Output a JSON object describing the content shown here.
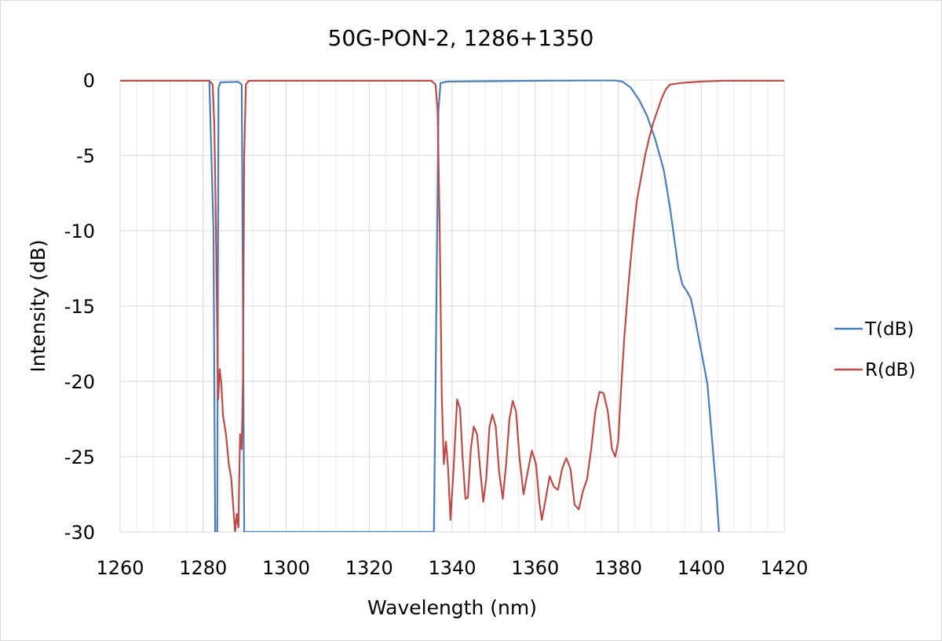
{
  "chart_data": {
    "type": "line",
    "title": "50G-PON-2, 1286+1350",
    "xlabel": "Wavelength (nm)",
    "ylabel": "Intensity (dB)",
    "xlim": [
      1260,
      1420
    ],
    "ylim": [
      -30,
      0
    ],
    "xticks": [
      1260,
      1280,
      1300,
      1320,
      1340,
      1360,
      1380,
      1400,
      1420
    ],
    "yticks": [
      0,
      -5,
      -10,
      -15,
      -20,
      -25,
      -30
    ],
    "xtick_labels": [
      "1260",
      "1280",
      "1300",
      "1320",
      "1340",
      "1360",
      "1380",
      "1400",
      "1420"
    ],
    "ytick_labels": [
      "0",
      "-5",
      "-10",
      "-15",
      "-20",
      "-25",
      "-30"
    ],
    "minor_x_step": 4,
    "grid": true,
    "legend_position": "right",
    "series": [
      {
        "name": "T(dB)",
        "color": "#4a7ebb",
        "points": [
          [
            1260,
            -0.05
          ],
          [
            1281.5,
            -0.05
          ],
          [
            1282.5,
            -10
          ],
          [
            1282.9,
            -30
          ],
          [
            1283.4,
            -30
          ],
          [
            1283.7,
            -0.5
          ],
          [
            1284.2,
            -0.15
          ],
          [
            1288.5,
            -0.12
          ],
          [
            1289.3,
            -0.3
          ],
          [
            1289.9,
            -30
          ],
          [
            1290.2,
            -30
          ],
          [
            1290.5,
            -30
          ],
          [
            1335.6,
            -30
          ],
          [
            1336.2,
            -15
          ],
          [
            1336.7,
            -2
          ],
          [
            1337.2,
            -0.2
          ],
          [
            1339,
            -0.1
          ],
          [
            1360,
            -0.05
          ],
          [
            1375,
            -0.03
          ],
          [
            1379,
            -0.03
          ],
          [
            1381,
            -0.1
          ],
          [
            1383,
            -0.5
          ],
          [
            1385,
            -1.3
          ],
          [
            1387,
            -2.4
          ],
          [
            1389,
            -4
          ],
          [
            1391,
            -6
          ],
          [
            1392.5,
            -8.5
          ],
          [
            1393.5,
            -10.5
          ],
          [
            1394.5,
            -12.5
          ],
          [
            1395.5,
            -13.6
          ],
          [
            1396.5,
            -14
          ],
          [
            1397.5,
            -14.5
          ],
          [
            1398.5,
            -15.8
          ],
          [
            1399.5,
            -17.3
          ],
          [
            1400.5,
            -18.7
          ],
          [
            1401.5,
            -20.2
          ],
          [
            1402.5,
            -23.5
          ],
          [
            1403.5,
            -26.8
          ],
          [
            1404.3,
            -30
          ]
        ]
      },
      {
        "name": "R(dB)",
        "color": "#be4b48",
        "points": [
          [
            1260,
            -0.05
          ],
          [
            1281.5,
            -0.05
          ],
          [
            1282.3,
            -0.3
          ],
          [
            1282.7,
            -3
          ],
          [
            1283.1,
            -10
          ],
          [
            1283.6,
            -21.2
          ],
          [
            1284,
            -19.2
          ],
          [
            1284.4,
            -20.2
          ],
          [
            1284.8,
            -22.3
          ],
          [
            1285.5,
            -23.5
          ],
          [
            1286.2,
            -25.5
          ],
          [
            1286.8,
            -26.5
          ],
          [
            1287.3,
            -28.5
          ],
          [
            1287.7,
            -30
          ],
          [
            1288.1,
            -28.8
          ],
          [
            1288.5,
            -29.7
          ],
          [
            1288.9,
            -23.5
          ],
          [
            1289.3,
            -24.5
          ],
          [
            1289.6,
            -20
          ],
          [
            1289.9,
            -5
          ],
          [
            1290.3,
            -0.3
          ],
          [
            1291,
            -0.05
          ],
          [
            1335,
            -0.05
          ],
          [
            1336,
            -0.3
          ],
          [
            1336.5,
            -2
          ],
          [
            1337,
            -10
          ],
          [
            1337.5,
            -21
          ],
          [
            1338,
            -25.5
          ],
          [
            1338.5,
            -24
          ],
          [
            1339,
            -25.7
          ],
          [
            1339.6,
            -29.2
          ],
          [
            1340.3,
            -26
          ],
          [
            1341.2,
            -21.2
          ],
          [
            1341.9,
            -21.8
          ],
          [
            1342.5,
            -25
          ],
          [
            1343.2,
            -27.8
          ],
          [
            1343.8,
            -27.7
          ],
          [
            1344.5,
            -24.5
          ],
          [
            1345.2,
            -23
          ],
          [
            1346,
            -23.5
          ],
          [
            1346.8,
            -26
          ],
          [
            1347.5,
            -28
          ],
          [
            1348.2,
            -26.5
          ],
          [
            1349,
            -23
          ],
          [
            1349.7,
            -22.2
          ],
          [
            1350.5,
            -23
          ],
          [
            1351.3,
            -26
          ],
          [
            1352.2,
            -27.8
          ],
          [
            1353,
            -25.5
          ],
          [
            1353.8,
            -22.5
          ],
          [
            1354.6,
            -21.3
          ],
          [
            1355.4,
            -22
          ],
          [
            1356.2,
            -25
          ],
          [
            1357.2,
            -27.5
          ],
          [
            1358.2,
            -26
          ],
          [
            1359.2,
            -24.6
          ],
          [
            1360.2,
            -25.5
          ],
          [
            1361,
            -28
          ],
          [
            1361.6,
            -29.2
          ],
          [
            1362.4,
            -28
          ],
          [
            1363.5,
            -26.3
          ],
          [
            1364.5,
            -27
          ],
          [
            1365.5,
            -27.2
          ],
          [
            1366.5,
            -25.8
          ],
          [
            1367.5,
            -25.1
          ],
          [
            1368.5,
            -25.8
          ],
          [
            1369.5,
            -28.2
          ],
          [
            1370.5,
            -28.5
          ],
          [
            1371.5,
            -27.3
          ],
          [
            1372.5,
            -26.5
          ],
          [
            1373.5,
            -24.5
          ],
          [
            1374.5,
            -22
          ],
          [
            1375.5,
            -20.7
          ],
          [
            1376.5,
            -20.8
          ],
          [
            1377.5,
            -22
          ],
          [
            1378.5,
            -24.5
          ],
          [
            1379.3,
            -25
          ],
          [
            1380,
            -24
          ],
          [
            1380.7,
            -20.5
          ],
          [
            1381.5,
            -17
          ],
          [
            1382.5,
            -13.5
          ],
          [
            1383.5,
            -10.5
          ],
          [
            1384.5,
            -8
          ],
          [
            1385.5,
            -6.5
          ],
          [
            1386.5,
            -5
          ],
          [
            1387.5,
            -3.8
          ],
          [
            1388.5,
            -2.8
          ],
          [
            1389.5,
            -2
          ],
          [
            1390.5,
            -1.2
          ],
          [
            1391.5,
            -0.6
          ],
          [
            1392.5,
            -0.3
          ],
          [
            1395,
            -0.2
          ],
          [
            1400,
            -0.1
          ],
          [
            1405,
            -0.05
          ],
          [
            1420,
            -0.05
          ]
        ]
      }
    ]
  }
}
